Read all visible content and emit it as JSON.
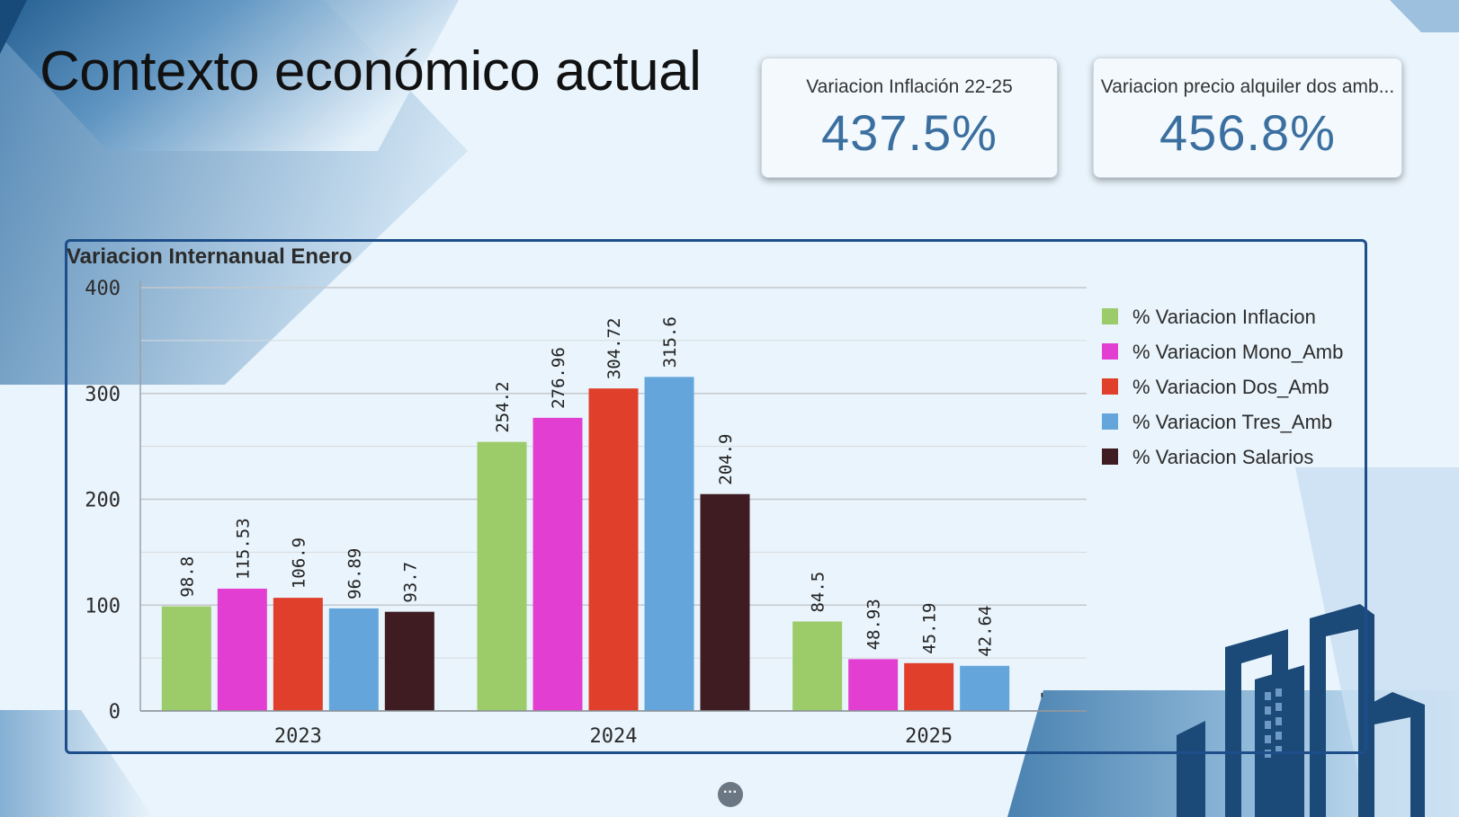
{
  "page": {
    "title": "Contexto económico actual"
  },
  "kpis": [
    {
      "label": "Variacion Inflación 22-25",
      "value": "437.5%"
    },
    {
      "label": "Variacion precio alquiler dos amb...",
      "value": "456.8%"
    }
  ],
  "more_button": {
    "label": "···"
  },
  "colors": {
    "inflacion": "#9ccb6a",
    "mono": "#e23ed1",
    "dos": "#e0402b",
    "tres": "#64a6dc",
    "salarios": "#3e1c22",
    "kpi_value": "#3a6f9f",
    "panel_border": "#1d4e89"
  },
  "chart_data": {
    "type": "bar",
    "title": "Variacion Internanual Enero",
    "categories": [
      "2023",
      "2024",
      "2025"
    ],
    "series": [
      {
        "name": "% Variacion Inflacion",
        "color": "#9ccb6a",
        "values": [
          98.8,
          254.2,
          84.5
        ],
        "labels": [
          "98.8",
          "254.2",
          "84.5"
        ]
      },
      {
        "name": "% Variacion Mono_Amb",
        "color": "#e23ed1",
        "values": [
          115.53,
          276.96,
          48.93
        ],
        "labels": [
          "115.53",
          "276.96",
          "48.93"
        ]
      },
      {
        "name": "% Variacion Dos_Amb",
        "color": "#e0402b",
        "values": [
          106.9,
          304.72,
          45.19
        ],
        "labels": [
          "106.9",
          "304.72",
          "45.19"
        ]
      },
      {
        "name": "% Variacion Tres_Amb",
        "color": "#64a6dc",
        "values": [
          96.89,
          315.6,
          42.64
        ],
        "labels": [
          "96.89",
          "315.6",
          "42.64"
        ]
      },
      {
        "name": "% Variacion Salarios",
        "color": "#3e1c22",
        "values": [
          93.7,
          204.9,
          null
        ],
        "labels": [
          "93.7",
          "204.9",
          "-"
        ]
      }
    ],
    "ylim": [
      0,
      400
    ],
    "yticks": [
      0,
      100,
      200,
      300,
      400
    ],
    "xlabel": "",
    "ylabel": "",
    "grid": true,
    "legend": "right"
  }
}
